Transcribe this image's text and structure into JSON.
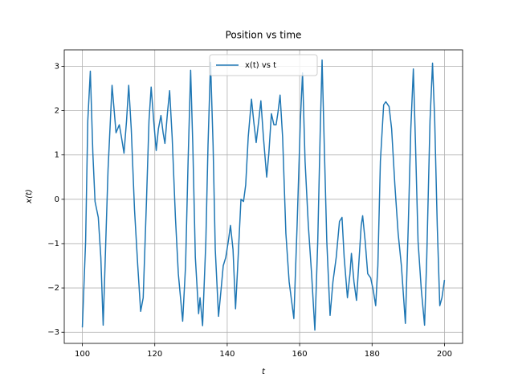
{
  "chart_data": {
    "type": "line",
    "title": "Position vs time",
    "x_label": "t",
    "y_label": "x(t)",
    "x": [
      100,
      100.9,
      101.5,
      102.2,
      102.9,
      103.5,
      104.4,
      105.1,
      105.75,
      106.6,
      107.1,
      108.2,
      109.3,
      110.2,
      110.8,
      111.5,
      112.2,
      112.8,
      113.5,
      114.4,
      115.3,
      116.1,
      116.8,
      117.7,
      118.4,
      119.0,
      119.7,
      120.4,
      121.0,
      121.7,
      122.3,
      122.8,
      123.5,
      124.1,
      124.8,
      125.7,
      126.5,
      127.7,
      128.5,
      129.2,
      129.9,
      130.5,
      131.2,
      132.1,
      132.5,
      133.2,
      134.1,
      134.7,
      135.4,
      136.1,
      136.7,
      137.6,
      138.3,
      138.9,
      139.6,
      140.3,
      140.9,
      141.6,
      142.3,
      142.9,
      143.8,
      144.5,
      145.1,
      145.8,
      146.7,
      147.3,
      148.0,
      148.7,
      149.3,
      150.0,
      150.9,
      151.5,
      152.2,
      152.9,
      153.5,
      154.0,
      154.6,
      155.3,
      156.2,
      157.1,
      158.4,
      159.3,
      160.2,
      160.8,
      161.5,
      162.4,
      163.3,
      164.2,
      165.0,
      165.7,
      166.2,
      166.8,
      167.5,
      168.4,
      169.2,
      170.1,
      171.0,
      171.7,
      172.3,
      173.2,
      173.9,
      174.3,
      175.0,
      175.7,
      176.3,
      177.0,
      177.4,
      178.1,
      178.8,
      179.6,
      180.3,
      181.0,
      181.6,
      182.3,
      183.2,
      183.8,
      184.7,
      185.4,
      186.3,
      187.2,
      188.1,
      189.2,
      190.0,
      190.7,
      191.4,
      192.0,
      192.7,
      193.6,
      194.5,
      195.1,
      196.0,
      196.7,
      197.3,
      198.0,
      198.7,
      199.3,
      200
    ],
    "series": [
      {
        "name": "x(t) vs t",
        "color": "#1f77b4",
        "values": [
          -2.89,
          -0.95,
          1.77,
          2.89,
          1.04,
          -0.05,
          -0.41,
          -1.31,
          -2.84,
          -0.6,
          0.68,
          2.57,
          1.5,
          1.68,
          1.4,
          1.04,
          1.77,
          2.57,
          1.59,
          -0.23,
          -1.5,
          -2.53,
          -2.22,
          -0.05,
          1.77,
          2.53,
          1.77,
          1.1,
          1.59,
          1.89,
          1.5,
          1.26,
          1.95,
          2.45,
          1.4,
          -0.41,
          -1.68,
          -2.75,
          -1.5,
          0.86,
          2.91,
          1.22,
          -1.31,
          -2.58,
          -2.22,
          -2.85,
          -0.95,
          1.22,
          3.09,
          1.22,
          -1.13,
          -2.64,
          -2.04,
          -1.5,
          -1.31,
          -0.95,
          -0.59,
          -1.13,
          -2.47,
          -1.5,
          0,
          -0.05,
          0.32,
          1.4,
          2.26,
          1.77,
          1.28,
          1.77,
          2.22,
          1.4,
          0.5,
          1.04,
          1.93,
          1.68,
          1.68,
          1.95,
          2.35,
          1.4,
          -0.77,
          -1.86,
          -2.69,
          -0.59,
          1.77,
          2.85,
          0.86,
          -0.59,
          -1.68,
          -2.95,
          -0.95,
          1.59,
          3.14,
          1.22,
          -0.95,
          -2.62,
          -1.86,
          -1.31,
          -0.5,
          -0.41,
          -1.31,
          -2.22,
          -1.68,
          -1.22,
          -1.86,
          -2.28,
          -1.5,
          -0.59,
          -0.37,
          -0.95,
          -1.68,
          -1.77,
          -2.04,
          -2.4,
          -1.5,
          0.86,
          2.13,
          2.2,
          2.09,
          1.59,
          0.32,
          -0.77,
          -1.5,
          -2.8,
          -0.59,
          1.59,
          2.94,
          1.22,
          -0.95,
          -2.04,
          -2.84,
          -1.31,
          1.77,
          3.07,
          1.77,
          -0.59,
          -2.4,
          -2.22,
          -1.82
        ]
      }
    ],
    "xlim": [
      95,
      205
    ],
    "ylim": [
      -3.25,
      3.37
    ],
    "xticks": [
      100,
      120,
      140,
      160,
      180,
      200
    ],
    "yticks": [
      {
        "value": -3,
        "label": "−3"
      },
      {
        "value": -2,
        "label": "−2"
      },
      {
        "value": -1,
        "label": "−1"
      },
      0,
      1,
      2,
      3
    ],
    "grid": true,
    "legend": "upper center"
  }
}
